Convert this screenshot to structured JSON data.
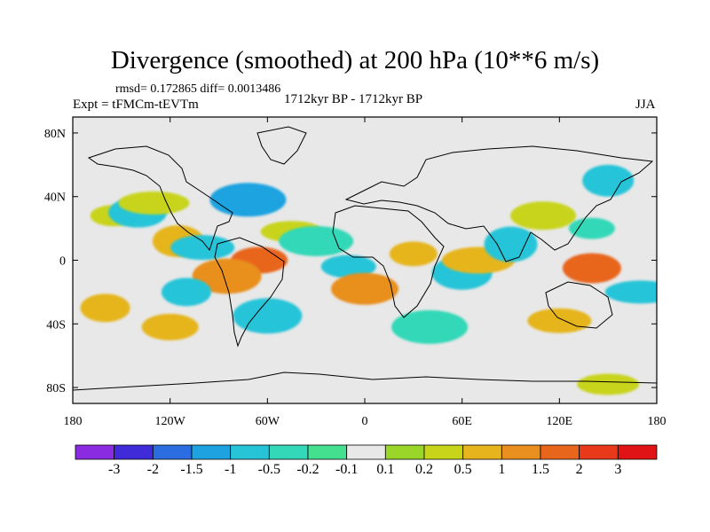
{
  "chart_data": {
    "type": "heatmap",
    "title": "Divergence (smoothed) at 200 hPa (10**6 m/s)",
    "stats": "rmsd= 0.172865 diff= 0.0013486",
    "experiment": "Expt = tFMCm-tEVTm",
    "period": "1712kyr BP - 1712kyr BP",
    "season": "JJA",
    "x_range": [
      -180,
      180
    ],
    "y_range": [
      -90,
      90
    ],
    "x_ticks": [
      {
        "value": -180,
        "label": "180"
      },
      {
        "value": -120,
        "label": "120W"
      },
      {
        "value": -60,
        "label": "60W"
      },
      {
        "value": 0,
        "label": "0"
      },
      {
        "value": 60,
        "label": "60E"
      },
      {
        "value": 120,
        "label": "120E"
      },
      {
        "value": 180,
        "label": "180"
      }
    ],
    "y_ticks": [
      {
        "value": 80,
        "label": "80N"
      },
      {
        "value": 40,
        "label": "40N"
      },
      {
        "value": 0,
        "label": "0"
      },
      {
        "value": -40,
        "label": "40S"
      },
      {
        "value": -80,
        "label": "80S"
      }
    ],
    "colorbar": {
      "labels": [
        "-3",
        "-2",
        "-1.5",
        "-1",
        "-0.5",
        "-0.2",
        "-0.1",
        "0.1",
        "0.2",
        "0.5",
        "1",
        "1.5",
        "2",
        "3"
      ],
      "colors": [
        "#8a2be2",
        "#3f2bd8",
        "#2b6de0",
        "#1fa3e0",
        "#27c4d8",
        "#33d8b8",
        "#45e08f",
        "#e8e8e8",
        "#9ad62a",
        "#c8d41a",
        "#e6b51e",
        "#e88f1f",
        "#e8651c",
        "#e83a1a",
        "#e01414"
      ]
    },
    "field_regions": [
      {
        "lon": -155,
        "lat": 28,
        "level": 9
      },
      {
        "lon": -140,
        "lat": 30,
        "level": 4
      },
      {
        "lon": -130,
        "lat": 36,
        "level": 9
      },
      {
        "lon": -115,
        "lat": 12,
        "level": 10
      },
      {
        "lon": -100,
        "lat": 8,
        "level": 4
      },
      {
        "lon": -72,
        "lat": 38,
        "level": 3
      },
      {
        "lon": -65,
        "lat": 0,
        "level": 12
      },
      {
        "lon": -85,
        "lat": -10,
        "level": 11
      },
      {
        "lon": -110,
        "lat": -20,
        "level": 4
      },
      {
        "lon": -45,
        "lat": 18,
        "level": 9
      },
      {
        "lon": -30,
        "lat": 12,
        "level": 5
      },
      {
        "lon": -10,
        "lat": -4,
        "level": 4
      },
      {
        "lon": 0,
        "lat": -18,
        "level": 11
      },
      {
        "lon": 30,
        "lat": 4,
        "level": 10
      },
      {
        "lon": 60,
        "lat": -8,
        "level": 4
      },
      {
        "lon": 70,
        "lat": 0,
        "level": 10
      },
      {
        "lon": 90,
        "lat": 10,
        "level": 4
      },
      {
        "lon": 110,
        "lat": 28,
        "level": 9
      },
      {
        "lon": 140,
        "lat": 20,
        "level": 5
      },
      {
        "lon": 140,
        "lat": -5,
        "level": 12
      },
      {
        "lon": 170,
        "lat": -20,
        "level": 4
      },
      {
        "lon": 150,
        "lat": 50,
        "level": 4
      },
      {
        "lon": 120,
        "lat": -38,
        "level": 10
      },
      {
        "lon": 40,
        "lat": -42,
        "level": 5
      },
      {
        "lon": -120,
        "lat": -42,
        "level": 10
      },
      {
        "lon": -60,
        "lat": -35,
        "level": 4
      },
      {
        "lon": -160,
        "lat": -30,
        "level": 10
      },
      {
        "lon": 150,
        "lat": -78,
        "level": 9
      }
    ]
  }
}
